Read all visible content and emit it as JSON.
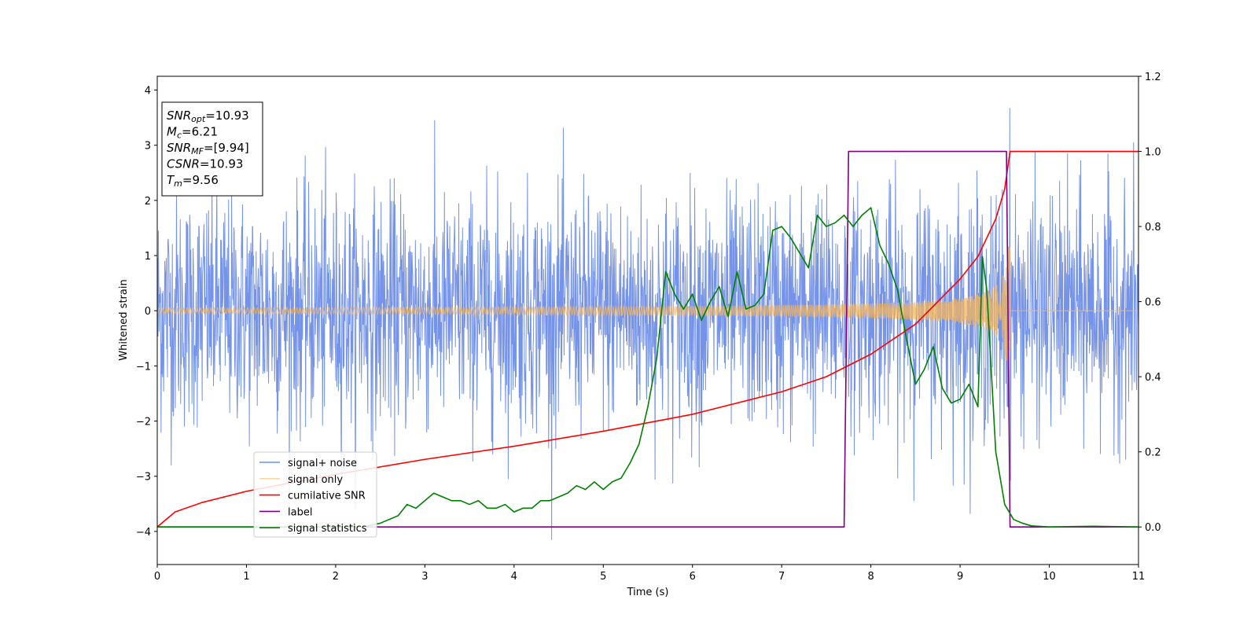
{
  "chart_data": {
    "type": "line",
    "xlabel": "Time (s)",
    "ylabel_left": "Whitened strain",
    "xlim": [
      0,
      11
    ],
    "ylim_left": [
      -4.6,
      4.25
    ],
    "ylim_right": [
      -0.1,
      1.2
    ],
    "x_ticks": [
      0,
      1,
      2,
      3,
      4,
      5,
      6,
      7,
      8,
      9,
      10,
      11
    ],
    "y_ticks_left": [
      4,
      3,
      2,
      1,
      0,
      -1,
      -2,
      -3,
      -4
    ],
    "y_tick_labels_left": [
      "4",
      "3",
      "2",
      "1",
      "0",
      "−1",
      "−2",
      "−3",
      "−4"
    ],
    "y_ticks_right": [
      1.2,
      1.0,
      0.8,
      0.6,
      0.4,
      0.2,
      0.0
    ],
    "y_tick_labels_right": [
      "1.2",
      "1.0",
      "0.8",
      "0.6",
      "0.4",
      "0.2",
      "0.0"
    ],
    "legend_position": "lower-left",
    "series": [
      {
        "name": "signal+ noise",
        "color": "#6e8de8",
        "axis": "left",
        "description_values": "gaussian noise, std about 1.05, plus signal",
        "noise_std": 1.05
      },
      {
        "name": "signal only",
        "color": "#f5b65a",
        "axis": "left",
        "chirp_end_time": 9.56,
        "amplitude_start": 0.05,
        "amplitude_end": 1.2
      },
      {
        "name": "cumilative SNR",
        "color": "#ff0000",
        "axis": "right",
        "x": [
          0,
          0.2,
          0.5,
          1,
          2,
          3,
          4,
          5,
          6,
          7,
          7.5,
          8,
          8.5,
          9,
          9.2,
          9.4,
          9.5,
          9.56,
          11
        ],
        "y": [
          0.0,
          0.04,
          0.065,
          0.095,
          0.14,
          0.18,
          0.215,
          0.255,
          0.3,
          0.36,
          0.4,
          0.46,
          0.54,
          0.66,
          0.72,
          0.82,
          0.9,
          1.0,
          1.0
        ]
      },
      {
        "name": "label",
        "color": "#800080",
        "axis": "right",
        "x": [
          0,
          7.7,
          7.75,
          9.52,
          9.56,
          11
        ],
        "y": [
          0,
          0,
          1,
          1,
          0,
          0
        ]
      },
      {
        "name": "signal statistics",
        "color": "#008000",
        "axis": "right",
        "x": [
          0,
          2.0,
          2.3,
          2.5,
          2.7,
          2.8,
          2.9,
          3.0,
          3.1,
          3.2,
          3.3,
          3.4,
          3.5,
          3.6,
          3.7,
          3.8,
          3.9,
          4.0,
          4.1,
          4.2,
          4.3,
          4.4,
          4.5,
          4.6,
          4.7,
          4.8,
          4.9,
          5.0,
          5.1,
          5.2,
          5.3,
          5.4,
          5.5,
          5.6,
          5.7,
          5.8,
          5.9,
          6.0,
          6.1,
          6.2,
          6.3,
          6.4,
          6.5,
          6.6,
          6.7,
          6.8,
          6.9,
          7.0,
          7.1,
          7.2,
          7.3,
          7.4,
          7.5,
          7.6,
          7.7,
          7.8,
          7.9,
          8.0,
          8.1,
          8.2,
          8.3,
          8.4,
          8.5,
          8.6,
          8.7,
          8.8,
          8.9,
          9.0,
          9.1,
          9.2,
          9.25,
          9.3,
          9.4,
          9.5,
          9.6,
          9.7,
          9.8,
          10.0,
          10.5,
          11
        ],
        "y": [
          0.0,
          0.0,
          0.0,
          0.01,
          0.03,
          0.06,
          0.05,
          0.07,
          0.09,
          0.08,
          0.07,
          0.07,
          0.06,
          0.07,
          0.05,
          0.05,
          0.06,
          0.04,
          0.05,
          0.05,
          0.07,
          0.07,
          0.08,
          0.09,
          0.11,
          0.1,
          0.12,
          0.1,
          0.12,
          0.13,
          0.17,
          0.22,
          0.32,
          0.45,
          0.68,
          0.62,
          0.58,
          0.62,
          0.55,
          0.6,
          0.64,
          0.56,
          0.68,
          0.58,
          0.59,
          0.62,
          0.79,
          0.8,
          0.77,
          0.73,
          0.69,
          0.83,
          0.8,
          0.81,
          0.83,
          0.8,
          0.83,
          0.85,
          0.75,
          0.7,
          0.63,
          0.5,
          0.38,
          0.42,
          0.48,
          0.37,
          0.33,
          0.34,
          0.38,
          0.32,
          0.72,
          0.63,
          0.2,
          0.06,
          0.02,
          0.01,
          0.003,
          0.0,
          0.002,
          0.0
        ]
      }
    ],
    "annotation_box": [
      {
        "main": "SNR",
        "sub": "opt",
        "rest": "=10.93"
      },
      {
        "main": "M",
        "sub": "c",
        "rest": "=6.21"
      },
      {
        "main": "SNR",
        "sub": "MF",
        "rest": "=[9.94]"
      },
      {
        "main": "CSNR",
        "sub": "",
        "rest": "=10.93"
      },
      {
        "main": "T",
        "sub": "m",
        "rest": "=9.56"
      }
    ]
  }
}
